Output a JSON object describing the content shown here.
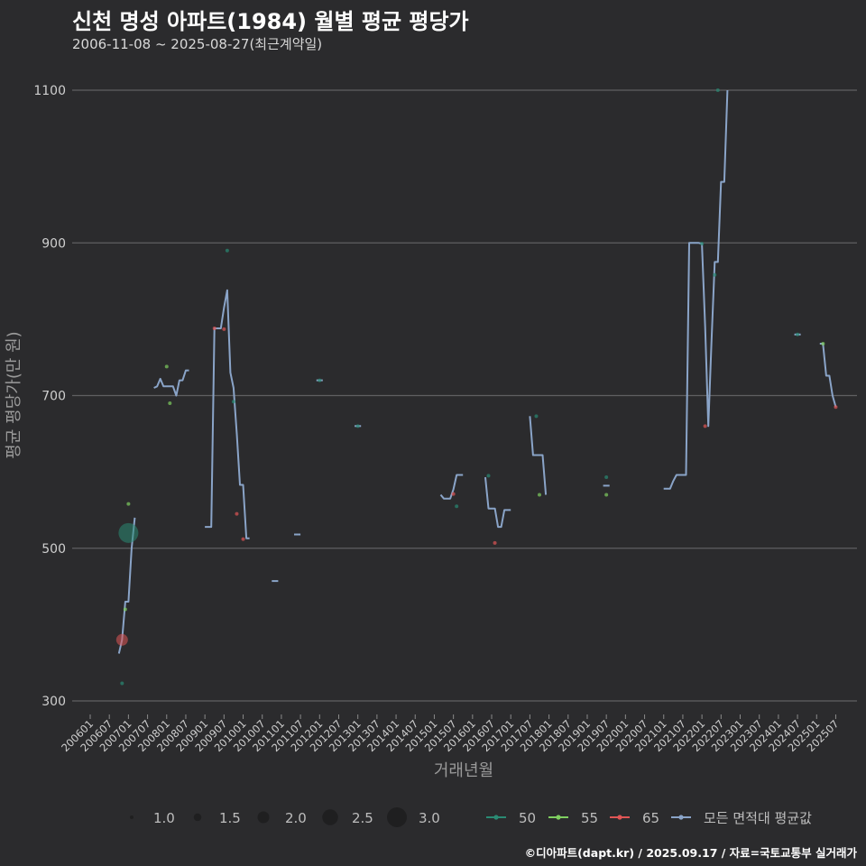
{
  "header": {
    "title": "신천 명성 아파트(1984) 월별 평균 평당가",
    "subtitle": "2006-11-08 ~ 2025-08-27(최근계약일)"
  },
  "footer": {
    "credit": "©디아파트(dapt.kr) / 2025.09.17 / 자료=국토교통부 실거래가"
  },
  "chart_data": {
    "type": "line",
    "xlabel": "거래년월",
    "ylabel": "평균 평당가(만 원)",
    "ylim": [
      300,
      1100
    ],
    "xlim": [
      "2006-01",
      "2025-08"
    ],
    "y_ticks": [
      300,
      500,
      700,
      900,
      1100
    ],
    "x_ticks": [
      "200601",
      "200607",
      "200701",
      "200707",
      "200801",
      "200807",
      "200901",
      "200907",
      "201001",
      "201007",
      "201101",
      "201107",
      "201201",
      "201207",
      "201301",
      "201307",
      "201401",
      "201407",
      "201501",
      "201507",
      "201601",
      "201607",
      "201701",
      "201707",
      "201801",
      "201807",
      "201901",
      "201907",
      "202001",
      "202007",
      "202101",
      "202107",
      "202201",
      "202207",
      "202301",
      "202307",
      "202401",
      "202407",
      "202501",
      "202507"
    ],
    "grid": true,
    "colors": {
      "background": "#2b2b2d",
      "grid": "#5f5f62",
      "area_50": "#2a8a73",
      "area_55": "#7fcf60",
      "area_65": "#e05555",
      "average": "#8aa4c8"
    },
    "size_legend": {
      "title": "",
      "values": [
        1.0,
        1.5,
        2.0,
        2.5,
        3.0
      ],
      "labels": [
        "1.0",
        "1.5",
        "2.0",
        "2.5",
        "3.0"
      ]
    },
    "color_legend": [
      {
        "label": "50",
        "key": "area_50"
      },
      {
        "label": "55",
        "key": "area_55"
      },
      {
        "label": "65",
        "key": "area_65"
      },
      {
        "label": "모든 면적대 평균값",
        "key": "average"
      }
    ],
    "series": [
      {
        "name": "50",
        "points": [
          {
            "x": "2006-11",
            "y": 323,
            "n": 1
          },
          {
            "x": "2007-01",
            "y": 520,
            "n": 3
          },
          {
            "x": "2009-08",
            "y": 890,
            "n": 1
          },
          {
            "x": "2009-10",
            "y": 692,
            "n": 1
          },
          {
            "x": "2012-01",
            "y": 720,
            "n": 1
          },
          {
            "x": "2013-01",
            "y": 660,
            "n": 1
          },
          {
            "x": "2015-08",
            "y": 555,
            "n": 1
          },
          {
            "x": "2016-06",
            "y": 595,
            "n": 1
          },
          {
            "x": "2017-09",
            "y": 673,
            "n": 1
          },
          {
            "x": "2019-07",
            "y": 593,
            "n": 1
          },
          {
            "x": "2022-01",
            "y": 899,
            "n": 1
          },
          {
            "x": "2022-05",
            "y": 858,
            "n": 1
          },
          {
            "x": "2022-06",
            "y": 1100,
            "n": 1
          },
          {
            "x": "2024-07",
            "y": 780,
            "n": 1
          }
        ]
      },
      {
        "name": "55",
        "points": [
          {
            "x": "2006-12",
            "y": 420,
            "n": 1
          },
          {
            "x": "2007-01",
            "y": 558,
            "n": 1
          },
          {
            "x": "2008-01",
            "y": 738,
            "n": 1
          },
          {
            "x": "2008-02",
            "y": 690,
            "n": 1
          },
          {
            "x": "2017-10",
            "y": 570,
            "n": 1
          },
          {
            "x": "2019-07",
            "y": 570,
            "n": 1
          },
          {
            "x": "2025-03",
            "y": 768,
            "n": 1
          }
        ]
      },
      {
        "name": "65",
        "points": [
          {
            "x": "2006-11",
            "y": 380,
            "n": 2
          },
          {
            "x": "2009-04",
            "y": 788,
            "n": 1
          },
          {
            "x": "2009-07",
            "y": 787,
            "n": 1
          },
          {
            "x": "2009-11",
            "y": 545,
            "n": 1
          },
          {
            "x": "2010-01",
            "y": 512,
            "n": 1
          },
          {
            "x": "2015-07",
            "y": 571,
            "n": 1
          },
          {
            "x": "2016-08",
            "y": 507,
            "n": 1
          },
          {
            "x": "2022-02",
            "y": 660,
            "n": 1
          },
          {
            "x": "2025-07",
            "y": 685,
            "n": 1
          }
        ]
      }
    ],
    "average_segments": [
      [
        {
          "x": "2006-10",
          "y": 362
        },
        {
          "x": "2006-11",
          "y": 380
        },
        {
          "x": "2006-12",
          "y": 430
        },
        {
          "x": "2007-01",
          "y": 430
        },
        {
          "x": "2007-02",
          "y": 500
        },
        {
          "x": "2007-03",
          "y": 540
        }
      ],
      [
        {
          "x": "2007-09",
          "y": 710
        },
        {
          "x": "2007-10",
          "y": 712
        },
        {
          "x": "2007-11",
          "y": 722
        },
        {
          "x": "2007-12",
          "y": 712
        },
        {
          "x": "2008-01",
          "y": 712
        },
        {
          "x": "2008-02",
          "y": 712
        },
        {
          "x": "2008-03",
          "y": 712
        },
        {
          "x": "2008-04",
          "y": 700
        },
        {
          "x": "2008-05",
          "y": 720
        },
        {
          "x": "2008-06",
          "y": 720
        },
        {
          "x": "2008-07",
          "y": 733
        },
        {
          "x": "2008-08",
          "y": 733
        }
      ],
      [
        {
          "x": "2009-01",
          "y": 528
        },
        {
          "x": "2009-02",
          "y": 528
        },
        {
          "x": "2009-03",
          "y": 528
        },
        {
          "x": "2009-04",
          "y": 788
        },
        {
          "x": "2009-05",
          "y": 788
        },
        {
          "x": "2009-06",
          "y": 788
        },
        {
          "x": "2009-07",
          "y": 815
        },
        {
          "x": "2009-08",
          "y": 838
        },
        {
          "x": "2009-09",
          "y": 730
        },
        {
          "x": "2009-10",
          "y": 710
        },
        {
          "x": "2009-11",
          "y": 650
        },
        {
          "x": "2009-12",
          "y": 583
        },
        {
          "x": "2010-01",
          "y": 583
        },
        {
          "x": "2010-02",
          "y": 513
        },
        {
          "x": "2010-03",
          "y": 513
        }
      ],
      [
        {
          "x": "2010-10",
          "y": 457
        },
        {
          "x": "2010-12",
          "y": 457
        }
      ],
      [
        {
          "x": "2011-05",
          "y": 518
        },
        {
          "x": "2011-07",
          "y": 518
        }
      ],
      [
        {
          "x": "2011-12",
          "y": 720
        },
        {
          "x": "2012-02",
          "y": 720
        }
      ],
      [
        {
          "x": "2012-12",
          "y": 660
        },
        {
          "x": "2013-02",
          "y": 660
        }
      ],
      [
        {
          "x": "2015-03",
          "y": 570
        },
        {
          "x": "2015-04",
          "y": 565
        },
        {
          "x": "2015-05",
          "y": 565
        },
        {
          "x": "2015-06",
          "y": 565
        },
        {
          "x": "2015-07",
          "y": 577
        },
        {
          "x": "2015-08",
          "y": 596
        },
        {
          "x": "2015-09",
          "y": 596
        },
        {
          "x": "2015-10",
          "y": 596
        }
      ],
      [
        {
          "x": "2016-05",
          "y": 593
        },
        {
          "x": "2016-06",
          "y": 552
        },
        {
          "x": "2016-07",
          "y": 552
        },
        {
          "x": "2016-08",
          "y": 552
        },
        {
          "x": "2016-09",
          "y": 528
        },
        {
          "x": "2016-10",
          "y": 528
        },
        {
          "x": "2016-11",
          "y": 550
        },
        {
          "x": "2016-12",
          "y": 550
        },
        {
          "x": "2017-01",
          "y": 550
        }
      ],
      [
        {
          "x": "2017-07",
          "y": 673
        },
        {
          "x": "2017-08",
          "y": 622
        },
        {
          "x": "2017-09",
          "y": 622
        },
        {
          "x": "2017-10",
          "y": 622
        },
        {
          "x": "2017-11",
          "y": 622
        },
        {
          "x": "2017-12",
          "y": 570
        }
      ],
      [
        {
          "x": "2019-06",
          "y": 582
        },
        {
          "x": "2019-08",
          "y": 582
        }
      ],
      [
        {
          "x": "2021-01",
          "y": 578
        },
        {
          "x": "2021-02",
          "y": 578
        },
        {
          "x": "2021-03",
          "y": 578
        },
        {
          "x": "2021-04",
          "y": 588
        },
        {
          "x": "2021-05",
          "y": 596
        },
        {
          "x": "2021-06",
          "y": 596
        },
        {
          "x": "2021-07",
          "y": 596
        },
        {
          "x": "2021-08",
          "y": 596
        },
        {
          "x": "2021-09",
          "y": 900
        },
        {
          "x": "2021-10",
          "y": 900
        },
        {
          "x": "2021-11",
          "y": 900
        },
        {
          "x": "2021-12",
          "y": 900
        },
        {
          "x": "2022-01",
          "y": 899
        },
        {
          "x": "2022-02",
          "y": 790
        },
        {
          "x": "2022-03",
          "y": 660
        },
        {
          "x": "2022-04",
          "y": 770
        },
        {
          "x": "2022-05",
          "y": 875
        },
        {
          "x": "2022-06",
          "y": 875
        },
        {
          "x": "2022-07",
          "y": 980
        },
        {
          "x": "2022-08",
          "y": 980
        },
        {
          "x": "2022-09",
          "y": 1100
        }
      ],
      [
        {
          "x": "2024-06",
          "y": 780
        },
        {
          "x": "2024-08",
          "y": 780
        }
      ],
      [
        {
          "x": "2025-02",
          "y": 768
        },
        {
          "x": "2025-03",
          "y": 768
        },
        {
          "x": "2025-04",
          "y": 726
        },
        {
          "x": "2025-05",
          "y": 726
        },
        {
          "x": "2025-06",
          "y": 700
        },
        {
          "x": "2025-07",
          "y": 685
        }
      ]
    ]
  }
}
